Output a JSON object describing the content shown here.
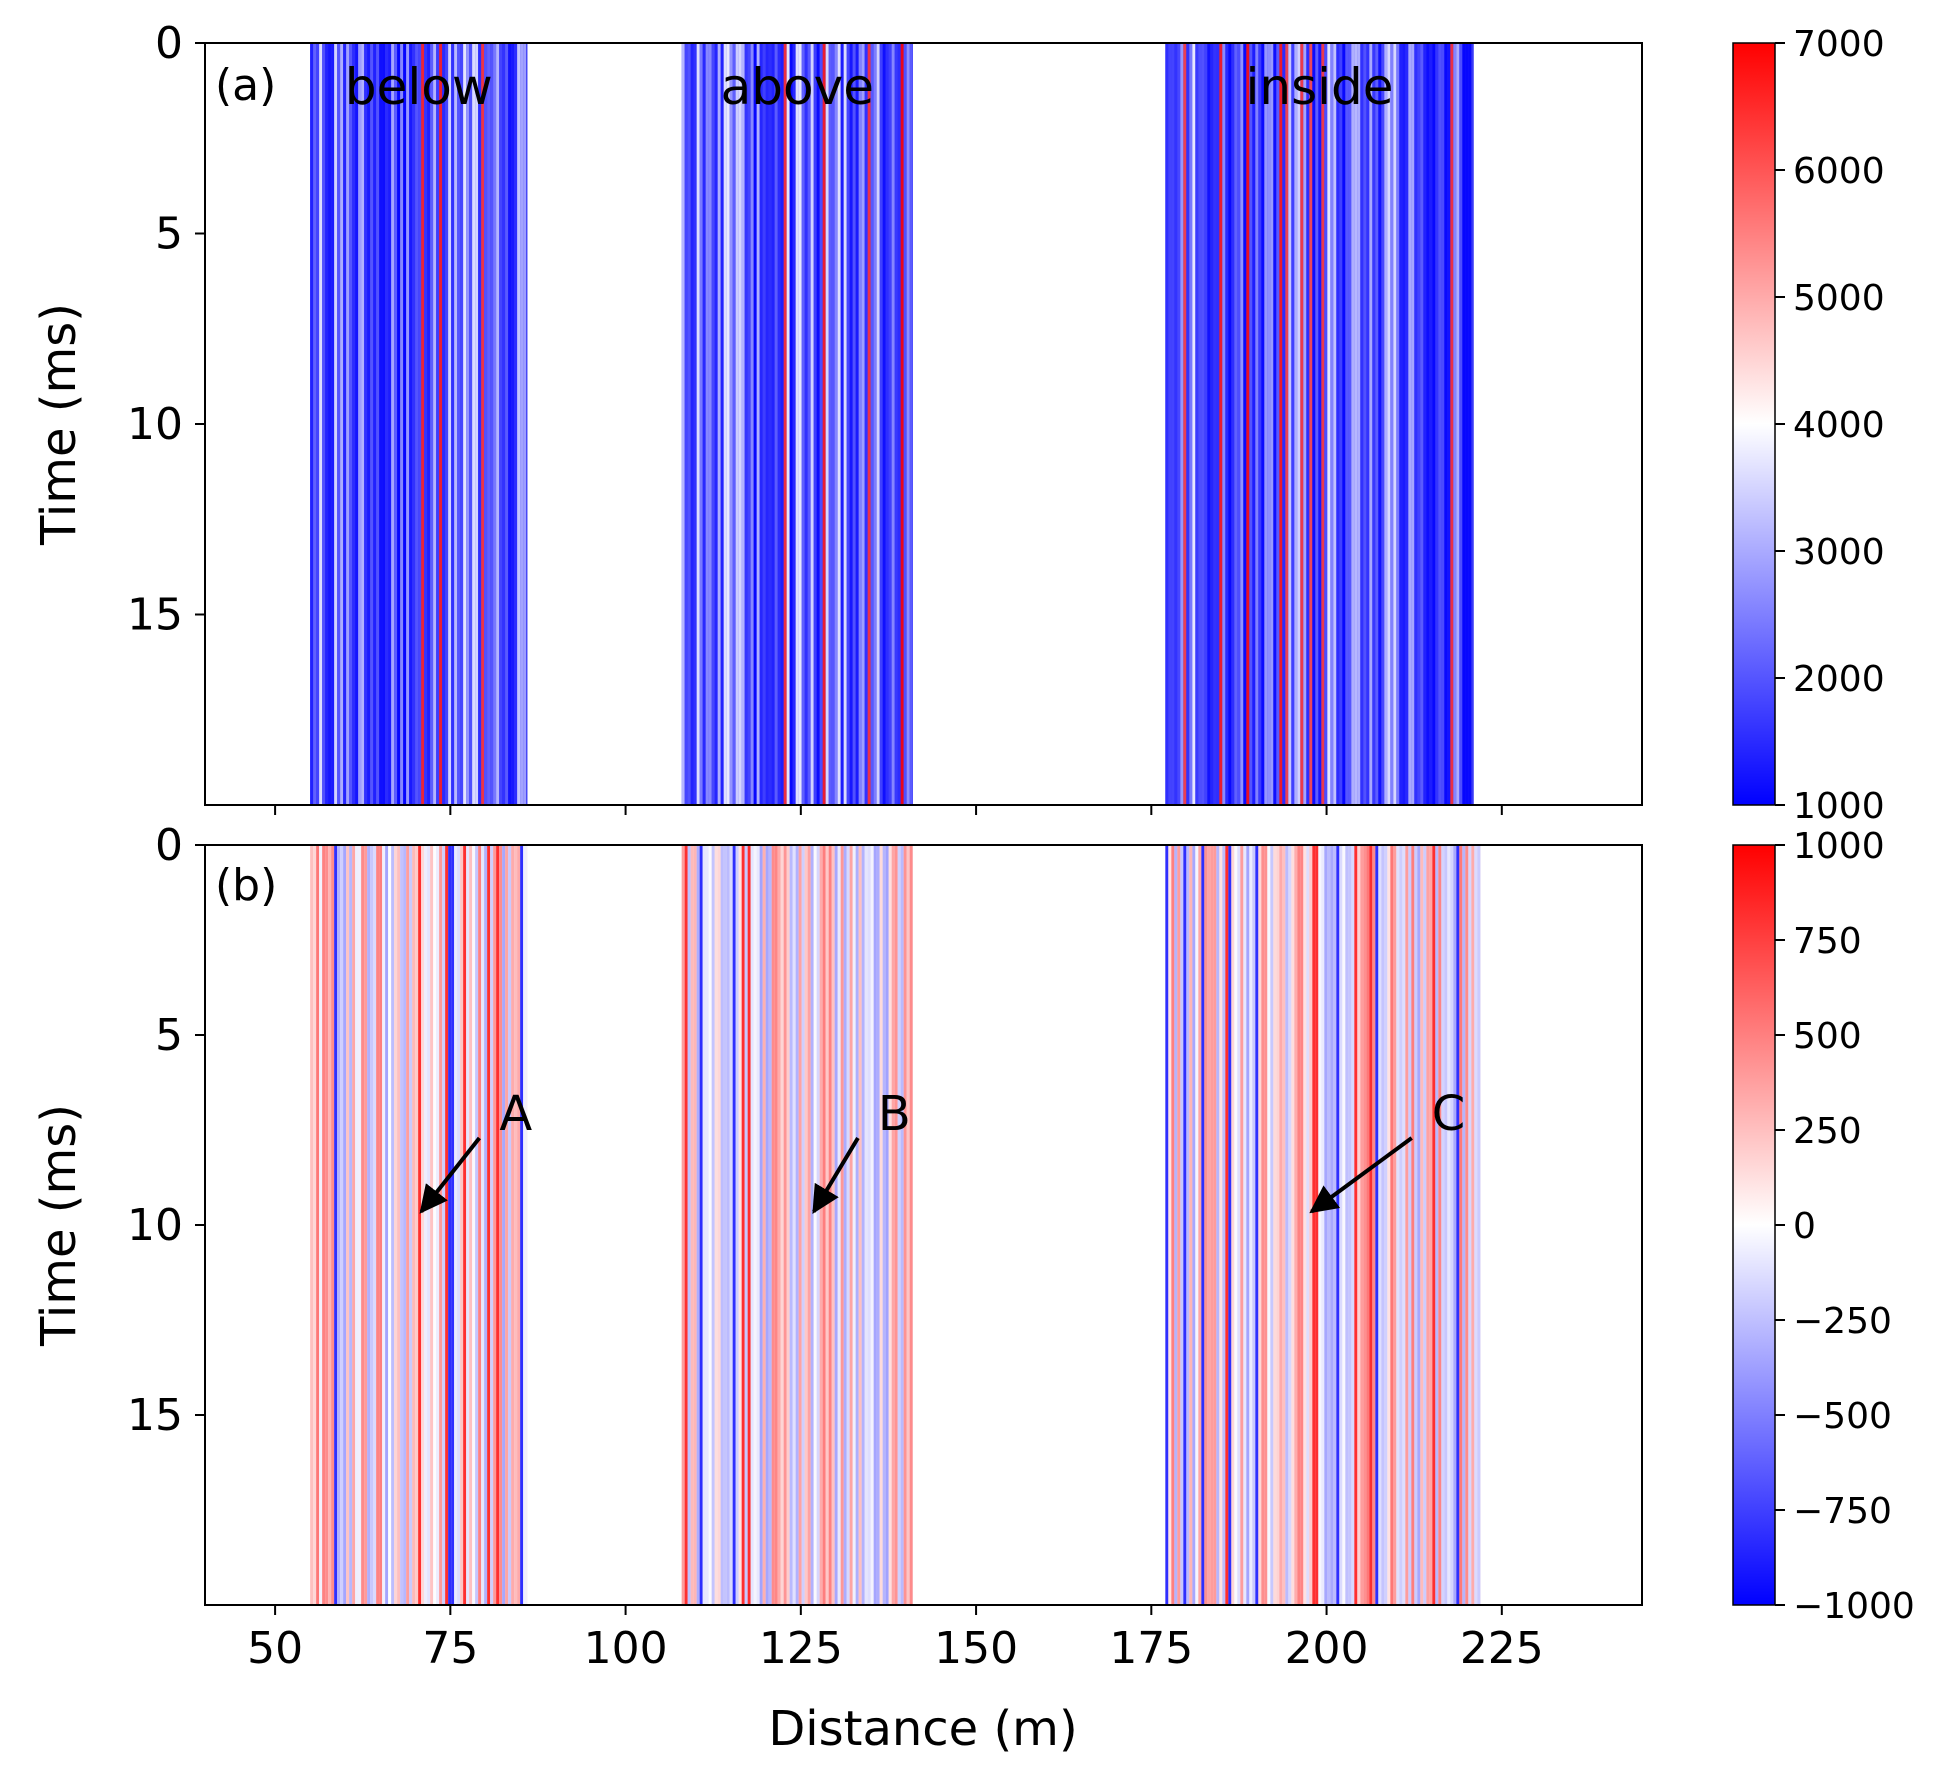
{
  "chart_data": [
    {
      "type": "heatmap",
      "panel_label": "(a)",
      "xlabel": "",
      "ylabel": "Time (ms)",
      "xlim": [
        40,
        245
      ],
      "ylim": [
        20,
        0
      ],
      "x_ticks": [
        50,
        75,
        100,
        125,
        150,
        175,
        200,
        225
      ],
      "x_tick_labels_shown": false,
      "y_ticks": [
        0,
        5,
        10,
        15
      ],
      "y_tick_labels": [
        "0",
        "5",
        "10",
        "15"
      ],
      "regions": [
        {
          "label": "below",
          "x_range": [
            55,
            86
          ]
        },
        {
          "label": "above",
          "x_range": [
            108,
            141
          ]
        },
        {
          "label": "inside",
          "x_range": [
            177,
            221
          ]
        }
      ],
      "colorbar": {
        "min": 1000,
        "max": 7000,
        "ticks": [
          1000,
          2000,
          3000,
          4000,
          5000,
          6000,
          7000
        ],
        "tick_labels": [
          "1000",
          "2000",
          "3000",
          "4000",
          "5000",
          "6000",
          "7000"
        ],
        "colormap": "bwr",
        "colors": {
          "low": "#0000ff",
          "mid": "#ffffff",
          "high": "#ff0000"
        }
      }
    },
    {
      "type": "heatmap",
      "panel_label": "(b)",
      "xlabel": "Distance (m)",
      "ylabel": "Time (ms)",
      "xlim": [
        40,
        245
      ],
      "ylim": [
        20,
        0
      ],
      "x_ticks": [
        50,
        75,
        100,
        125,
        150,
        175,
        200,
        225
      ],
      "x_tick_labels": [
        "50",
        "75",
        "100",
        "125",
        "150",
        "175",
        "200",
        "225"
      ],
      "y_ticks": [
        0,
        5,
        10,
        15
      ],
      "y_tick_labels": [
        "0",
        "5",
        "10",
        "15"
      ],
      "regions": [
        {
          "x_range": [
            55,
            86
          ]
        },
        {
          "x_range": [
            108,
            141
          ]
        },
        {
          "x_range": [
            177,
            222
          ]
        }
      ],
      "annotations": [
        {
          "label": "A",
          "point": [
            70,
            9.7
          ],
          "text_at": [
            82,
            7.5
          ]
        },
        {
          "label": "B",
          "point": [
            126,
            9.7
          ],
          "text_at": [
            136,
            7.5
          ]
        },
        {
          "label": "C",
          "point": [
            197,
            9.7
          ],
          "text_at": [
            215,
            7.5
          ]
        }
      ],
      "colorbar": {
        "min": -1000,
        "max": 1000,
        "ticks": [
          -1000,
          -750,
          -500,
          -250,
          0,
          250,
          500,
          750,
          1000
        ],
        "tick_labels": [
          "−1000",
          "−750",
          "−500",
          "−250",
          "0",
          "250",
          "500",
          "750",
          "1000"
        ],
        "colormap": "bwr",
        "colors": {
          "low": "#0000ff",
          "mid": "#ffffff",
          "high": "#ff0000"
        }
      }
    }
  ]
}
